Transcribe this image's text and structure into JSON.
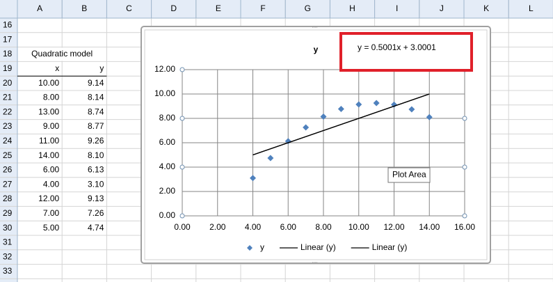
{
  "sheet": {
    "columns": [
      "A",
      "B",
      "C",
      "D",
      "E",
      "F",
      "G",
      "H",
      "I",
      "J",
      "K",
      "L"
    ],
    "rows": [
      "16",
      "17",
      "18",
      "19",
      "20",
      "21",
      "22",
      "23",
      "24",
      "25",
      "26",
      "27",
      "28",
      "29",
      "30",
      "31",
      "32",
      "33"
    ],
    "table_title": "Quadratic model",
    "header": [
      "x",
      "y"
    ],
    "data": [
      [
        "10.00",
        "9.14"
      ],
      [
        "8.00",
        "8.14"
      ],
      [
        "13.00",
        "8.74"
      ],
      [
        "9.00",
        "8.77"
      ],
      [
        "11.00",
        "9.26"
      ],
      [
        "14.00",
        "8.10"
      ],
      [
        "6.00",
        "6.13"
      ],
      [
        "4.00",
        "3.10"
      ],
      [
        "12.00",
        "9.13"
      ],
      [
        "7.00",
        "7.26"
      ],
      [
        "5.00",
        "4.74"
      ]
    ]
  },
  "tooltip": "Plot Area",
  "chart_data": {
    "type": "scatter",
    "title": "y",
    "annotation": "y = 0.5001x + 3.0001",
    "series": [
      {
        "name": "y",
        "color": "#4f81bd",
        "mode": "markers",
        "x": [
          10,
          8,
          13,
          9,
          11,
          14,
          6,
          4,
          12,
          7,
          5
        ],
        "values": [
          9.14,
          8.14,
          8.74,
          8.77,
          9.26,
          8.1,
          6.13,
          3.1,
          9.13,
          7.26,
          4.74
        ]
      },
      {
        "name": "Linear (y)",
        "color": "#000000",
        "mode": "line",
        "x": [
          4,
          14
        ],
        "values": [
          5,
          10
        ]
      },
      {
        "name": "Linear (y)",
        "color": "#000000",
        "mode": "line",
        "x": [
          4,
          14
        ],
        "values": [
          5,
          10
        ]
      }
    ],
    "xlim": [
      0,
      16
    ],
    "xticks": [
      {
        "value": 0,
        "label": "0.00"
      },
      {
        "value": 2,
        "label": "2.00"
      },
      {
        "value": 4,
        "label": "4.00"
      },
      {
        "value": 6,
        "label": "6.00"
      },
      {
        "value": 8,
        "label": "8.00"
      },
      {
        "value": 10,
        "label": "10.00"
      },
      {
        "value": 12,
        "label": "12.00"
      },
      {
        "value": 14,
        "label": "14.00"
      },
      {
        "value": 16,
        "label": "16.00"
      }
    ],
    "ylim": [
      0,
      12
    ],
    "yticks": [
      {
        "value": 0,
        "label": "0.00"
      },
      {
        "value": 2,
        "label": "2.00"
      },
      {
        "value": 4,
        "label": "4.00"
      },
      {
        "value": 6,
        "label": "6.00"
      },
      {
        "value": 8,
        "label": "8.00"
      },
      {
        "value": 10,
        "label": "10.00"
      },
      {
        "value": 12,
        "label": "12.00"
      }
    ],
    "grid": true,
    "legend": "bottom"
  }
}
